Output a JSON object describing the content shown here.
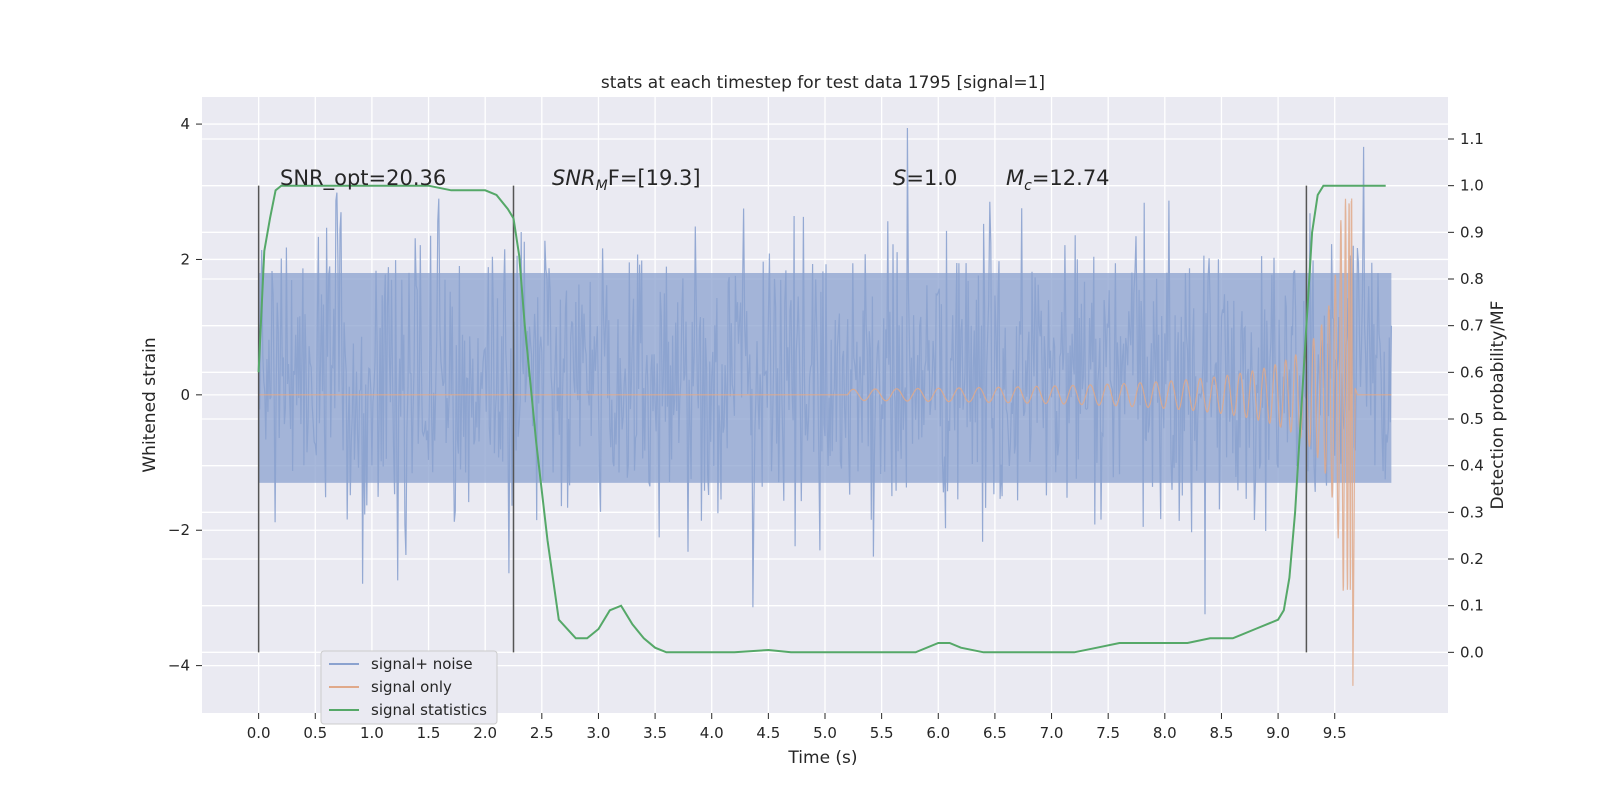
{
  "chart_data": {
    "type": "line",
    "title": "stats at each timestep for test data 1795 [signal=1]",
    "xlabel": "Time (s)",
    "ylabel": "Whitened strain",
    "y2label": "Detection probability/MF",
    "xlim": [
      -0.5,
      10.5
    ],
    "ylim": [
      -4.7,
      4.4
    ],
    "y2lim": [
      -0.13,
      1.19
    ],
    "x_ticks": [
      0.0,
      0.5,
      1.0,
      1.5,
      2.0,
      2.5,
      3.0,
      3.5,
      4.0,
      4.5,
      5.0,
      5.5,
      6.0,
      6.5,
      7.0,
      7.5,
      8.0,
      8.5,
      9.0,
      9.5
    ],
    "x_tick_labels": [
      "0.0",
      "0.5",
      "1.0",
      "1.5",
      "2.0",
      "2.5",
      "3.0",
      "3.5",
      "4.0",
      "4.5",
      "5.0",
      "5.5",
      "6.0",
      "6.5",
      "7.0",
      "7.5",
      "8.0",
      "8.5",
      "9.0",
      "9.5"
    ],
    "y_ticks": [
      4,
      2,
      0,
      -2,
      -4
    ],
    "y_tick_labels": [
      "4",
      "2",
      "0",
      "−2",
      "−4"
    ],
    "y2_ticks": [
      1.1,
      1.0,
      0.9,
      0.8,
      0.7,
      0.6,
      0.5,
      0.4,
      0.3,
      0.2,
      0.1,
      0.0
    ],
    "y2_tick_labels": [
      "1.1",
      "1.0",
      "0.9",
      "0.8",
      "0.7",
      "0.6",
      "0.5",
      "0.4",
      "0.3",
      "0.2",
      "0.1",
      "0.0"
    ],
    "grid": true,
    "legend_placement": "lower-left",
    "annotations": {
      "snr_opt": "SNR_opt=20.36",
      "snr_mf_base": "SNR",
      "snr_mf_sub": "M",
      "snr_mf_rest": "F=[19.3]",
      "s_italic": "S",
      "s_rest": "=1.0",
      "mc_italic": "M",
      "mc_sub": "c",
      "mc_rest": "=12.74"
    },
    "vertical_lines_x": [
      0.0,
      2.25,
      9.25
    ],
    "noise_envelope": {
      "x_range": [
        0.0,
        10.0
      ],
      "y_range": [
        -3.7,
        4.05
      ],
      "dense_band": [
        -1.3,
        1.8
      ]
    },
    "series": [
      {
        "name": "signal+ noise",
        "color": "#8ba2cf",
        "role": "strain",
        "x": [
          0.0,
          10.0
        ],
        "y": [
          -3.7,
          4.05
        ]
      },
      {
        "name": "signal only",
        "color": "#e0a98a",
        "role": "strain",
        "chirp": {
          "start_x": 5.5,
          "merger_x": 9.65,
          "end_x": 10.0,
          "peak_pos": 2.9,
          "peak_neg": -4.3
        }
      },
      {
        "name": "signal statistics",
        "color": "#55a868",
        "role": "probability",
        "x": [
          0.0,
          0.05,
          0.1,
          0.15,
          0.2,
          0.3,
          0.5,
          1.0,
          1.5,
          1.7,
          1.9,
          2.0,
          2.1,
          2.2,
          2.25,
          2.3,
          2.35,
          2.45,
          2.55,
          2.65,
          2.8,
          2.9,
          3.0,
          3.1,
          3.2,
          3.3,
          3.4,
          3.5,
          3.6,
          3.8,
          4.0,
          4.2,
          4.5,
          4.7,
          5.0,
          5.3,
          5.5,
          5.8,
          6.0,
          6.1,
          6.2,
          6.4,
          6.6,
          6.8,
          7.0,
          7.2,
          7.4,
          7.6,
          7.8,
          8.0,
          8.2,
          8.4,
          8.6,
          8.8,
          9.0,
          9.05,
          9.1,
          9.15,
          9.2,
          9.25,
          9.3,
          9.35,
          9.4,
          9.5,
          9.7,
          9.95
        ],
        "y": [
          0.6,
          0.86,
          0.93,
          0.99,
          1.0,
          1.0,
          1.0,
          1.0,
          1.0,
          0.99,
          0.99,
          0.99,
          0.98,
          0.95,
          0.93,
          0.85,
          0.7,
          0.45,
          0.24,
          0.07,
          0.03,
          0.03,
          0.05,
          0.09,
          0.1,
          0.06,
          0.03,
          0.01,
          0.0,
          0.0,
          0.0,
          0.0,
          0.005,
          0.0,
          0.0,
          0.0,
          0.0,
          0.0,
          0.02,
          0.02,
          0.01,
          0.0,
          0.0,
          0.0,
          0.0,
          0.0,
          0.01,
          0.02,
          0.02,
          0.02,
          0.02,
          0.03,
          0.03,
          0.05,
          0.07,
          0.09,
          0.16,
          0.3,
          0.5,
          0.7,
          0.9,
          0.98,
          1.0,
          1.0,
          1.0,
          1.0
        ]
      }
    ]
  }
}
